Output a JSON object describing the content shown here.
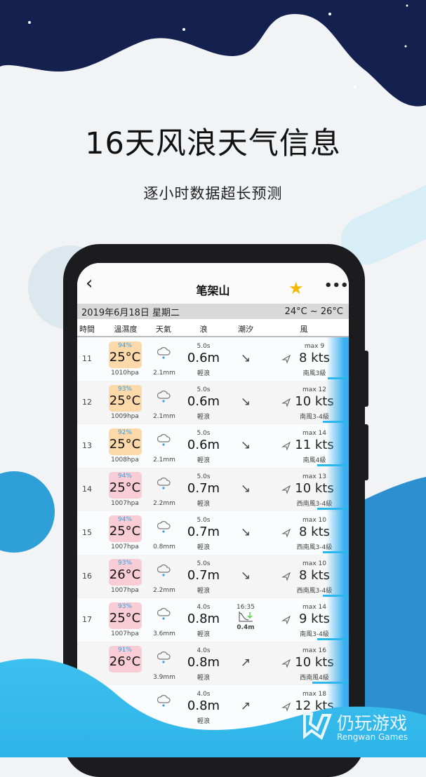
{
  "promo": {
    "title": "16天风浪天气信息",
    "subtitle": "逐小时数据超长预测"
  },
  "nav": {
    "title": "笔架山",
    "back": "‹",
    "star": "★",
    "more": "•••"
  },
  "date_bar": {
    "date": "2019年6月18日 星期二",
    "range": "24°C ~ 26°C"
  },
  "columns": [
    "時間",
    "溫濕度",
    "天氣",
    "浪",
    "潮汐",
    "風"
  ],
  "rows": [
    {
      "hour": "11",
      "hum": "94%",
      "temp": "25°C",
      "hpa": "1010hpa",
      "rain": "2.1mm",
      "period": "5.0s",
      "wave": "0.6m",
      "wave_desc": "輕浪",
      "tide": "↘",
      "max": "max 9",
      "kts": "8 kts",
      "wind": "南風3級",
      "tone": "orange",
      "wind_level": 0.2
    },
    {
      "hour": "12",
      "hum": "93%",
      "temp": "25°C",
      "hpa": "1009hpa",
      "rain": "2.1mm",
      "period": "5.0s",
      "wave": "0.6m",
      "wave_desc": "輕浪",
      "tide": "↘",
      "max": "max 12",
      "kts": "10 kts",
      "wind": "南風3-4級",
      "tone": "orange",
      "wind_level": 0.25
    },
    {
      "hour": "13",
      "hum": "92%",
      "temp": "25°C",
      "hpa": "1008hpa",
      "rain": "2.1mm",
      "period": "5.0s",
      "wave": "0.6m",
      "wave_desc": "輕浪",
      "tide": "↘",
      "max": "max 14",
      "kts": "11 kts",
      "wind": "南風4級",
      "tone": "orange",
      "wind_level": 0.3
    },
    {
      "hour": "14",
      "hum": "94%",
      "temp": "25°C",
      "hpa": "1007hpa",
      "rain": "2.2mm",
      "period": "5.0s",
      "wave": "0.7m",
      "wave_desc": "輕浪",
      "tide": "↘",
      "max": "max 13",
      "kts": "10 kts",
      "wind": "西南風3-4級",
      "tone": "pink",
      "wind_level": 0.3
    },
    {
      "hour": "15",
      "hum": "94%",
      "temp": "25°C",
      "hpa": "1007hpa",
      "rain": "0.8mm",
      "period": "5.0s",
      "wave": "0.7m",
      "wave_desc": "輕浪",
      "tide": "↘",
      "max": "max 10",
      "kts": "8 kts",
      "wind": "西南風3-4級",
      "tone": "pink",
      "wind_level": 0.25
    },
    {
      "hour": "16",
      "hum": "93%",
      "temp": "26°C",
      "hpa": "1007hpa",
      "rain": "2.2mm",
      "period": "5.0s",
      "wave": "0.7m",
      "wave_desc": "輕浪",
      "tide": "↘",
      "max": "max 10",
      "kts": "8 kts",
      "wind": "西南風3-4級",
      "tone": "pink",
      "wind_level": 0.25
    },
    {
      "hour": "17",
      "hum": "93%",
      "temp": "25°C",
      "hpa": "1007hpa",
      "rain": "3.6mm",
      "period": "4.0s",
      "wave": "0.8m",
      "wave_desc": "輕浪",
      "tide": "",
      "tide_time": "16:35",
      "tide_height": "0.4m",
      "max": "max 14",
      "kts": "9 kts",
      "wind": "南風3-4級",
      "tone": "pink",
      "wind_level": 0.3
    },
    {
      "hour": "",
      "hum": "91%",
      "temp": "26°C",
      "hpa": "",
      "rain": "3.9mm",
      "period": "4.0s",
      "wave": "0.8m",
      "wave_desc": "輕浪",
      "tide": "↗",
      "max": "max 16",
      "kts": "10 kts",
      "wind": "西南風4級",
      "tone": "pink",
      "wind_level": 0.35
    },
    {
      "hour": "",
      "hum": "",
      "temp": "",
      "hpa": "",
      "rain": "",
      "period": "4.0s",
      "wave": "0.8m",
      "wave_desc": "輕浪",
      "tide": "↗",
      "max": "max 18",
      "kts": "12 kts",
      "wind": "",
      "tone": "none",
      "wind_level": 0.4
    }
  ],
  "colors": {
    "navy": "#0f1b45",
    "blue_wave": "#37b9ea",
    "orange_box": "#fbd9a8",
    "pink_box": "#f9cdd6",
    "humidity": "#3aa0e0"
  },
  "watermark": {
    "cn": "仍玩游戏",
    "en": "Rengwan Games"
  }
}
